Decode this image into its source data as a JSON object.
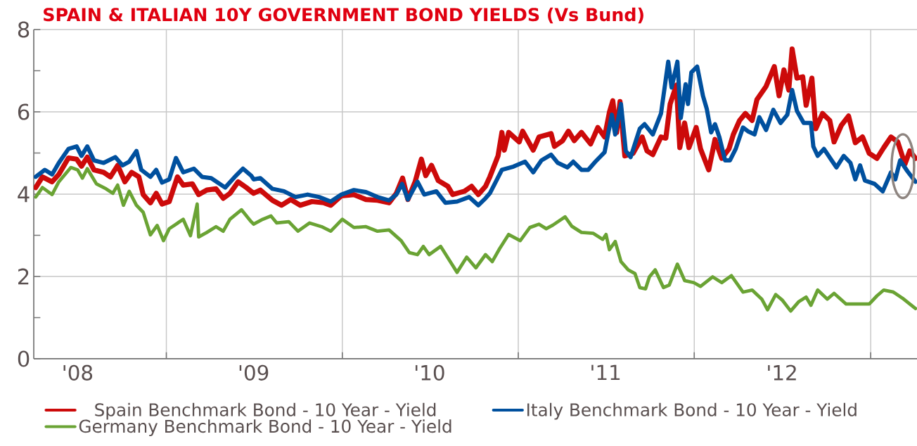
{
  "chart_data": {
    "type": "line",
    "title": "SPAIN & ITALIAN 10Y GOVERNMENT BOND YIELDS (Vs Bund)",
    "xlim": [
      "2008-04-01",
      "2013-04-07"
    ],
    "xticks": [
      {
        "value": "2008-07-01",
        "label": "'08"
      },
      {
        "value": "2009-01-01",
        "label": null
      },
      {
        "value": "2009-07-01",
        "label": "'09"
      },
      {
        "value": "2010-01-01",
        "label": null
      },
      {
        "value": "2010-07-01",
        "label": "'10"
      },
      {
        "value": "2011-01-01",
        "label": null
      },
      {
        "value": "2011-07-01",
        "label": "'11"
      },
      {
        "value": "2012-01-01",
        "label": null
      },
      {
        "value": "2012-07-01",
        "label": "'12"
      },
      {
        "value": "2013-01-01",
        "label": null
      }
    ],
    "ylim": [
      0,
      8
    ],
    "yticks": [
      0,
      {
        "value": 1,
        "label": null
      },
      2,
      {
        "value": 3,
        "label": null
      },
      4,
      {
        "value": 5,
        "label": null
      },
      6,
      {
        "value": 7,
        "label": null
      },
      8
    ],
    "grid": true,
    "legend": "bottom",
    "line_style": "solid",
    "series": [
      {
        "name": "Spain Benchmark Bond - 10 Year - Yield",
        "color": "#cc0a0a",
        "x": [
          "2008-04-05",
          "2008-04-19",
          "2008-05-09",
          "2008-05-23",
          "2008-06-12",
          "2008-06-29",
          "2008-07-09",
          "2008-07-21",
          "2008-08-04",
          "2008-08-24",
          "2008-09-07",
          "2008-09-22",
          "2008-10-07",
          "2008-10-21",
          "2008-11-05",
          "2008-11-14",
          "2008-11-29",
          "2008-12-11",
          "2008-12-23",
          "2009-01-07",
          "2009-01-24",
          "2009-02-05",
          "2009-02-24",
          "2009-03-09",
          "2009-03-26",
          "2009-04-14",
          "2009-04-29",
          "2009-05-13",
          "2009-05-30",
          "2009-06-16",
          "2009-07-01",
          "2009-07-15",
          "2009-08-09",
          "2009-08-28",
          "2009-09-16",
          "2009-10-06",
          "2009-10-30",
          "2009-11-24",
          "2009-12-08",
          "2009-12-30",
          "2010-01-25",
          "2010-02-19",
          "2010-03-15",
          "2010-04-08",
          "2010-04-23",
          "2010-05-06",
          "2010-05-17",
          "2010-06-01",
          "2010-06-14",
          "2010-06-23",
          "2010-07-05",
          "2010-07-19",
          "2010-08-08",
          "2010-08-18",
          "2010-09-11",
          "2010-09-26",
          "2010-10-10",
          "2010-10-25",
          "2010-11-03",
          "2010-11-20",
          "2010-11-28",
          "2010-12-03",
          "2010-12-12",
          "2011-01-03",
          "2011-01-10",
          "2011-02-01",
          "2011-02-13",
          "2011-03-10",
          "2011-03-17",
          "2011-04-03",
          "2011-04-15",
          "2011-04-27",
          "2011-05-12",
          "2011-05-31",
          "2011-06-15",
          "2011-06-29",
          "2011-07-09",
          "2011-07-16",
          "2011-07-24",
          "2011-07-31",
          "2011-08-10",
          "2011-08-27",
          "2011-09-15",
          "2011-09-25",
          "2011-10-07",
          "2011-10-24",
          "2011-11-03",
          "2011-11-12",
          "2011-11-25",
          "2011-12-02",
          "2011-12-12",
          "2011-12-21",
          "2012-01-05",
          "2012-01-14",
          "2012-01-31",
          "2012-02-13",
          "2012-02-27",
          "2012-03-13",
          "2012-03-22",
          "2012-04-04",
          "2012-04-16",
          "2012-04-30",
          "2012-05-10",
          "2012-05-29",
          "2012-06-15",
          "2012-06-25",
          "2012-07-05",
          "2012-07-15",
          "2012-07-22",
          "2012-08-01",
          "2012-08-13",
          "2012-08-20",
          "2012-09-01",
          "2012-09-09",
          "2012-09-23",
          "2012-10-08",
          "2012-10-17",
          "2012-11-01",
          "2012-11-16",
          "2012-11-30",
          "2012-12-15",
          "2012-12-29",
          "2013-01-14",
          "2013-01-28",
          "2013-02-12",
          "2013-02-26",
          "2013-03-13",
          "2013-03-23",
          "2013-04-04"
        ],
        "values": [
          4.16,
          4.42,
          4.3,
          4.48,
          4.88,
          4.85,
          4.68,
          4.9,
          4.59,
          4.53,
          4.42,
          4.7,
          4.3,
          4.53,
          4.42,
          3.99,
          3.79,
          4.02,
          3.76,
          3.82,
          4.42,
          4.22,
          4.25,
          3.99,
          4.1,
          4.13,
          3.9,
          4.02,
          4.3,
          4.16,
          4.02,
          4.1,
          3.85,
          3.73,
          3.87,
          3.73,
          3.82,
          3.79,
          3.73,
          3.96,
          3.99,
          3.87,
          3.85,
          3.79,
          4.02,
          4.39,
          3.87,
          4.3,
          4.85,
          4.45,
          4.7,
          4.33,
          4.19,
          3.99,
          4.07,
          4.19,
          3.99,
          4.19,
          4.42,
          4.93,
          5.5,
          5.07,
          5.5,
          5.27,
          5.53,
          5.07,
          5.39,
          5.47,
          5.16,
          5.3,
          5.53,
          5.3,
          5.5,
          5.22,
          5.62,
          5.39,
          5.99,
          6.27,
          5.5,
          6.25,
          4.93,
          4.99,
          5.39,
          5.05,
          4.96,
          5.39,
          5.36,
          6.19,
          6.65,
          5.13,
          5.73,
          5.13,
          5.62,
          5.1,
          4.59,
          5.33,
          4.87,
          5.1,
          5.45,
          5.79,
          5.96,
          5.79,
          6.3,
          6.62,
          7.1,
          6.39,
          7.02,
          6.53,
          7.53,
          6.82,
          6.85,
          6.16,
          6.82,
          5.59,
          5.96,
          5.79,
          5.27,
          5.67,
          5.9,
          5.25,
          5.39,
          4.99,
          4.87,
          5.13,
          5.39,
          5.27,
          4.73,
          5.05,
          4.87
        ]
      },
      {
        "name": "Italy Benchmark Bond - 10 Year - Yield",
        "color": "#00509e",
        "x": [
          "2008-04-05",
          "2008-04-24",
          "2008-05-09",
          "2008-05-23",
          "2008-06-12",
          "2008-06-29",
          "2008-07-09",
          "2008-07-21",
          "2008-08-04",
          "2008-08-24",
          "2008-09-17",
          "2008-10-02",
          "2008-10-16",
          "2008-10-31",
          "2008-11-10",
          "2008-11-29",
          "2008-12-11",
          "2008-12-23",
          "2009-01-07",
          "2009-01-21",
          "2009-02-05",
          "2009-02-27",
          "2009-03-16",
          "2009-04-04",
          "2009-05-03",
          "2009-05-23",
          "2009-06-09",
          "2009-06-26",
          "2009-07-01",
          "2009-07-15",
          "2009-08-09",
          "2009-09-02",
          "2009-09-26",
          "2009-10-21",
          "2009-11-14",
          "2009-12-08",
          "2009-12-30",
          "2010-01-25",
          "2010-02-19",
          "2010-03-15",
          "2010-04-08",
          "2010-04-23",
          "2010-05-05",
          "2010-05-17",
          "2010-06-06",
          "2010-06-20",
          "2010-07-15",
          "2010-08-03",
          "2010-08-27",
          "2010-09-21",
          "2010-10-10",
          "2010-10-25",
          "2010-11-03",
          "2010-11-28",
          "2010-12-22",
          "2011-01-15",
          "2011-02-01",
          "2011-02-18",
          "2011-03-10",
          "2011-03-24",
          "2011-04-13",
          "2011-04-25",
          "2011-05-12",
          "2011-05-26",
          "2011-06-10",
          "2011-06-29",
          "2011-07-14",
          "2011-07-21",
          "2011-08-02",
          "2011-08-12",
          "2011-08-22",
          "2011-09-10",
          "2011-09-20",
          "2011-10-07",
          "2011-10-24",
          "2011-11-08",
          "2011-11-15",
          "2011-11-27",
          "2011-12-04",
          "2011-12-14",
          "2011-12-19",
          "2011-12-26",
          "2012-01-07",
          "2012-01-19",
          "2012-01-27",
          "2012-02-05",
          "2012-02-13",
          "2012-02-22",
          "2012-03-05",
          "2012-03-15",
          "2012-03-27",
          "2012-04-11",
          "2012-04-21",
          "2012-05-05",
          "2012-05-15",
          "2012-05-29",
          "2012-06-13",
          "2012-06-28",
          "2012-07-12",
          "2012-07-22",
          "2012-08-01",
          "2012-08-15",
          "2012-08-30",
          "2012-09-04",
          "2012-09-13",
          "2012-09-26",
          "2012-10-12",
          "2012-10-22",
          "2012-11-06",
          "2012-11-20",
          "2012-11-30",
          "2012-12-10",
          "2012-12-20",
          "2013-01-09",
          "2013-01-26",
          "2013-02-12",
          "2013-02-21",
          "2013-03-03",
          "2013-03-18",
          "2013-04-04"
        ],
        "values": [
          4.42,
          4.59,
          4.48,
          4.76,
          5.1,
          5.16,
          4.93,
          5.16,
          4.82,
          4.76,
          4.9,
          4.7,
          4.79,
          5.05,
          4.59,
          4.42,
          4.59,
          4.28,
          4.36,
          4.88,
          4.53,
          4.62,
          4.42,
          4.39,
          4.16,
          4.42,
          4.62,
          4.45,
          4.36,
          4.39,
          4.13,
          4.07,
          3.93,
          3.99,
          3.93,
          3.82,
          3.99,
          4.1,
          4.05,
          3.93,
          3.85,
          3.99,
          4.25,
          3.87,
          4.3,
          3.99,
          4.07,
          3.79,
          3.82,
          3.93,
          3.73,
          3.9,
          4.02,
          4.59,
          4.67,
          4.79,
          4.53,
          4.82,
          4.96,
          4.76,
          4.65,
          4.79,
          4.59,
          4.59,
          4.79,
          5.02,
          5.93,
          5.45,
          6.19,
          5.05,
          4.9,
          5.59,
          5.7,
          5.45,
          5.96,
          7.22,
          6.59,
          7.22,
          5.85,
          6.67,
          6.19,
          6.96,
          7.1,
          6.39,
          6.07,
          5.5,
          5.7,
          5.39,
          4.82,
          4.82,
          5.1,
          5.62,
          5.53,
          5.45,
          5.87,
          5.56,
          6.05,
          5.73,
          5.93,
          6.53,
          6.02,
          5.73,
          5.73,
          5.16,
          4.93,
          5.1,
          4.82,
          4.65,
          4.93,
          4.76,
          4.36,
          4.7,
          4.33,
          4.25,
          4.07,
          4.53,
          4.36,
          4.82,
          4.56,
          4.3
        ]
      },
      {
        "name": "Germany Benchmark Bond - 10 Year - Yield",
        "color": "#6aa334",
        "x": [
          "2008-04-05",
          "2008-04-19",
          "2008-05-09",
          "2008-05-23",
          "2008-06-17",
          "2008-07-01",
          "2008-07-11",
          "2008-07-21",
          "2008-08-09",
          "2008-08-29",
          "2008-09-12",
          "2008-09-22",
          "2008-10-04",
          "2008-10-16",
          "2008-10-31",
          "2008-11-14",
          "2008-11-29",
          "2008-12-13",
          "2008-12-26",
          "2009-01-07",
          "2009-01-21",
          "2009-02-05",
          "2009-02-20",
          "2009-03-06",
          "2009-03-09",
          "2009-03-26",
          "2009-04-14",
          "2009-04-29",
          "2009-05-13",
          "2009-06-06",
          "2009-06-26",
          "2009-07-01",
          "2009-07-20",
          "2009-08-06",
          "2009-08-18",
          "2009-09-12",
          "2009-10-01",
          "2009-10-25",
          "2009-11-19",
          "2009-12-08",
          "2010-01-01",
          "2010-01-25",
          "2010-02-19",
          "2010-03-15",
          "2010-04-08",
          "2010-05-03",
          "2010-05-20",
          "2010-06-06",
          "2010-06-18",
          "2010-06-30",
          "2010-07-24",
          "2010-08-13",
          "2010-08-27",
          "2010-09-16",
          "2010-10-05",
          "2010-10-25",
          "2010-11-08",
          "2010-11-23",
          "2010-12-12",
          "2011-01-05",
          "2011-01-25",
          "2011-02-13",
          "2011-02-28",
          "2011-03-14",
          "2011-04-08",
          "2011-04-22",
          "2011-05-12",
          "2011-06-05",
          "2011-06-25",
          "2011-07-02",
          "2011-07-09",
          "2011-07-21",
          "2011-08-02",
          "2011-08-17",
          "2011-08-31",
          "2011-09-10",
          "2011-09-22",
          "2011-09-30",
          "2011-10-12",
          "2011-10-29",
          "2011-11-10",
          "2011-11-27",
          "2011-12-12",
          "2011-12-31",
          "2012-01-14",
          "2012-02-08",
          "2012-02-27",
          "2012-03-18",
          "2012-04-11",
          "2012-04-30",
          "2012-05-20",
          "2012-06-01",
          "2012-06-18",
          "2012-07-02",
          "2012-07-19",
          "2012-08-05",
          "2012-08-20",
          "2012-08-30",
          "2012-09-13",
          "2012-10-03",
          "2012-10-17",
          "2012-11-11",
          "2012-12-05",
          "2012-12-29",
          "2013-01-14",
          "2013-01-28",
          "2013-02-17",
          "2013-03-08",
          "2013-03-23",
          "2013-04-04"
        ],
        "values": [
          3.93,
          4.16,
          3.99,
          4.3,
          4.65,
          4.59,
          4.39,
          4.62,
          4.25,
          4.13,
          4.02,
          4.22,
          3.73,
          4.07,
          3.73,
          3.56,
          3.01,
          3.24,
          2.87,
          3.16,
          3.27,
          3.39,
          2.99,
          3.76,
          2.96,
          3.07,
          3.21,
          3.1,
          3.39,
          3.62,
          3.33,
          3.27,
          3.39,
          3.47,
          3.3,
          3.33,
          3.1,
          3.3,
          3.21,
          3.1,
          3.39,
          3.19,
          3.21,
          3.1,
          3.13,
          2.87,
          2.58,
          2.53,
          2.73,
          2.53,
          2.73,
          2.36,
          2.1,
          2.47,
          2.21,
          2.53,
          2.36,
          2.67,
          3.02,
          2.87,
          3.19,
          3.27,
          3.16,
          3.25,
          3.45,
          3.22,
          3.07,
          3.05,
          2.9,
          3.02,
          2.65,
          2.85,
          2.36,
          2.16,
          2.07,
          1.73,
          1.7,
          1.99,
          2.16,
          1.73,
          1.79,
          2.3,
          1.9,
          1.85,
          1.76,
          1.99,
          1.85,
          2.02,
          1.62,
          1.67,
          1.45,
          1.19,
          1.56,
          1.42,
          1.16,
          1.39,
          1.5,
          1.3,
          1.67,
          1.45,
          1.59,
          1.33,
          1.33,
          1.33,
          1.53,
          1.67,
          1.62,
          1.47,
          1.33,
          1.22
        ]
      }
    ]
  }
}
